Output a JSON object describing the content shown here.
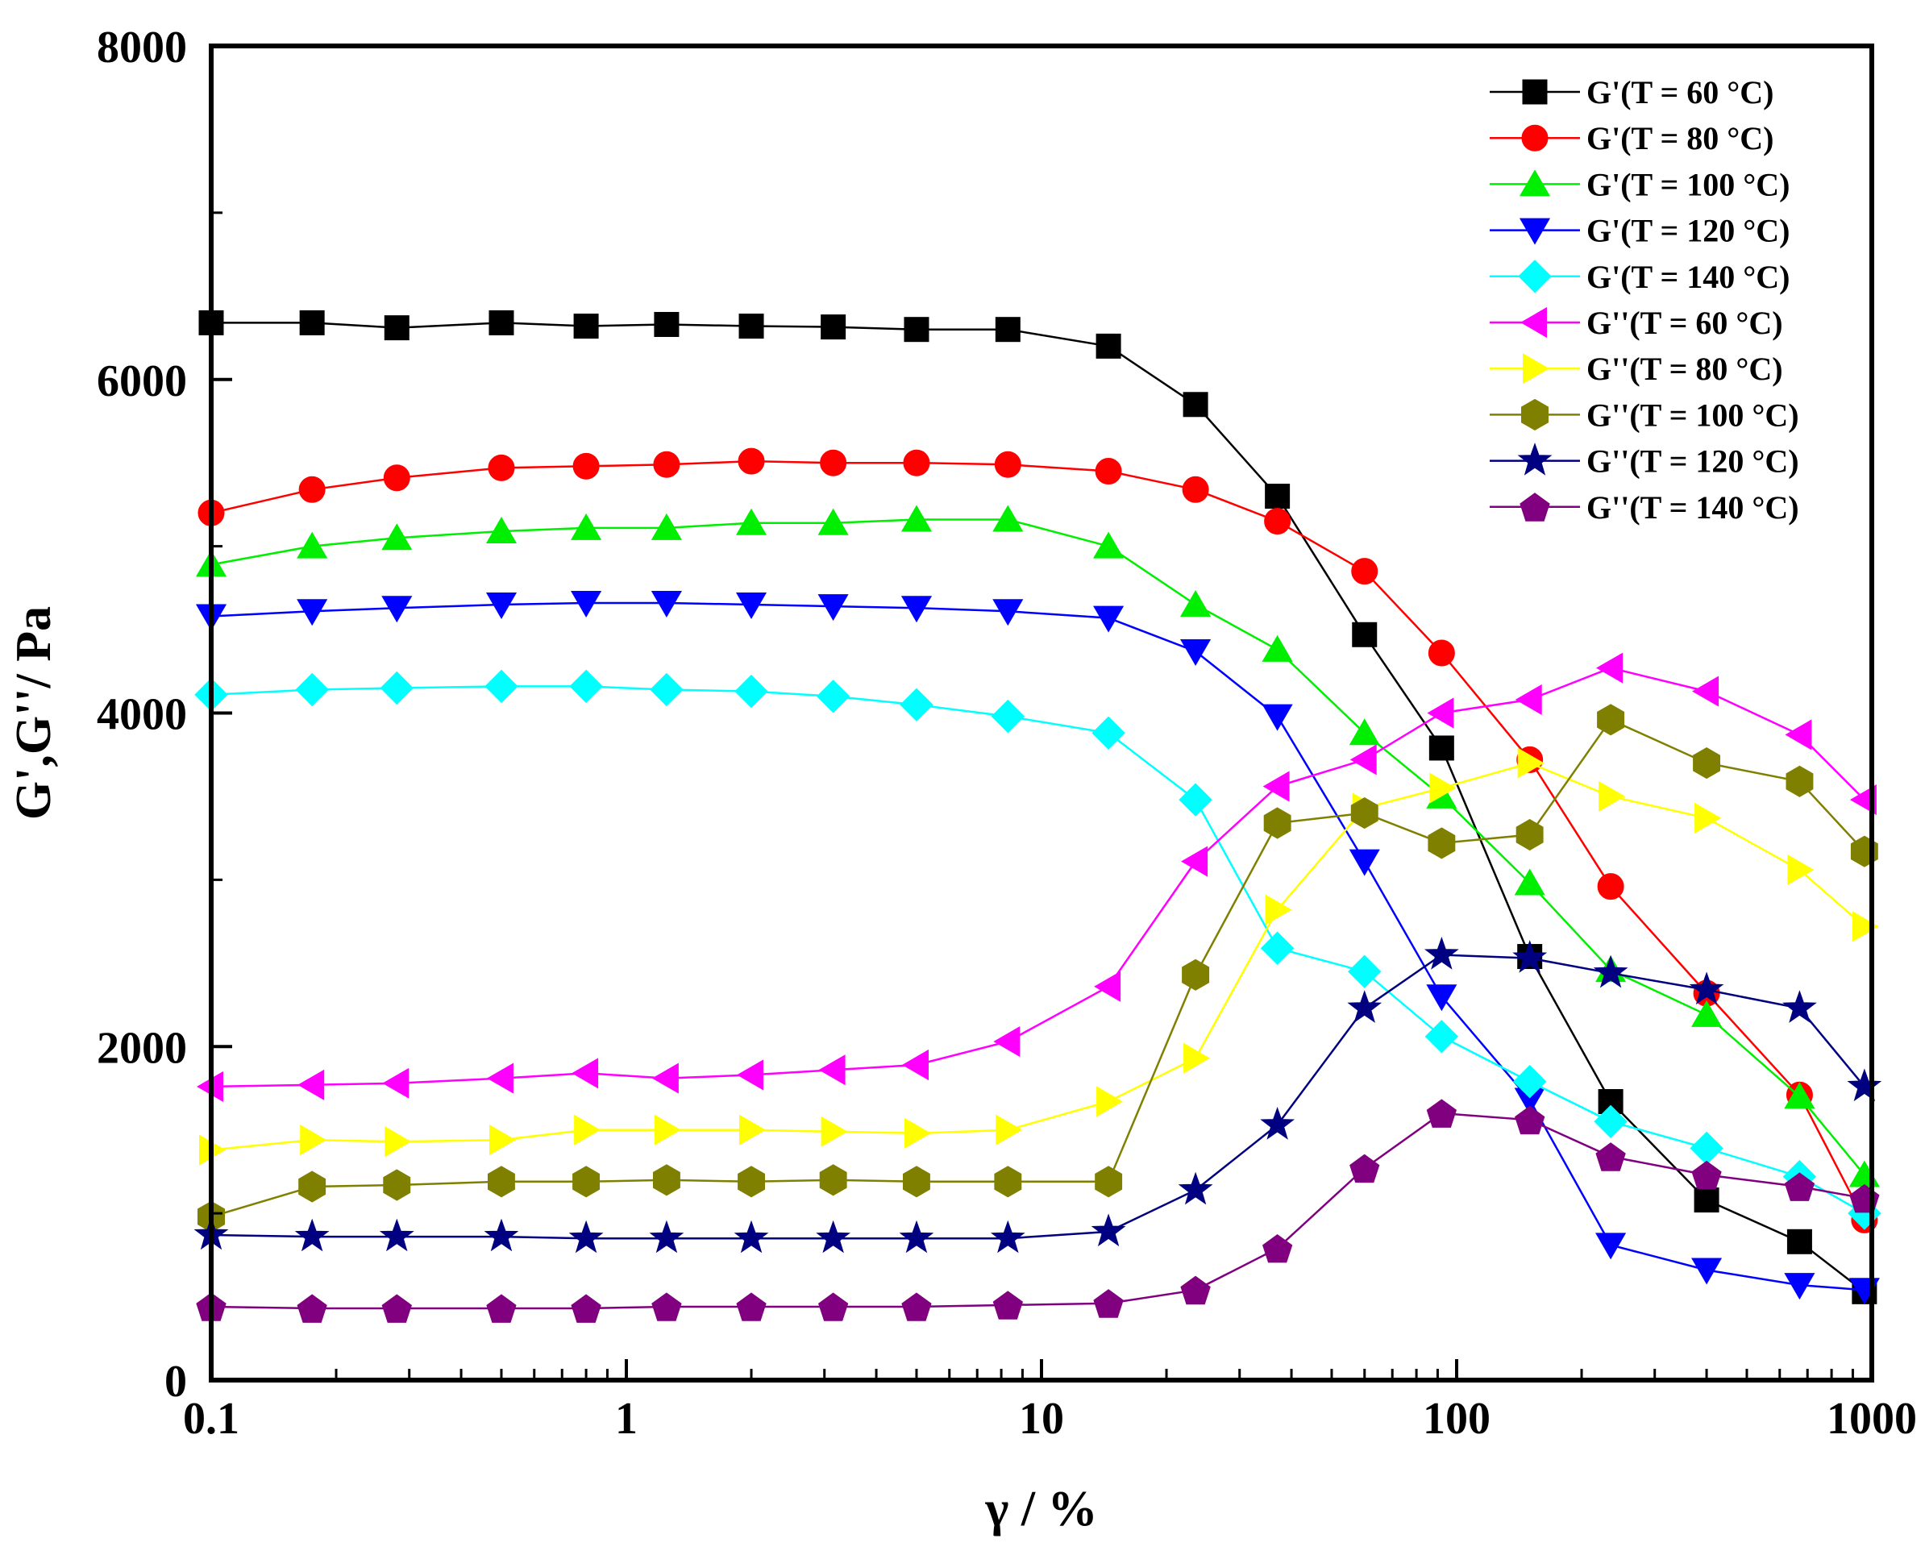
{
  "chart_data": {
    "type": "line",
    "title": "",
    "xlabel": "γ / %",
    "ylabel": "G',G''/ Pa",
    "xscale": "log",
    "xlim": [
      0.1,
      1000
    ],
    "ylim": [
      0,
      8000
    ],
    "x_ticks": [
      {
        "value": 0.1,
        "label": "0.1"
      },
      {
        "value": 1,
        "label": "1"
      },
      {
        "value": 10,
        "label": "10"
      },
      {
        "value": 100,
        "label": "100"
      },
      {
        "value": 1000,
        "label": "1000"
      }
    ],
    "y_ticks": [
      {
        "value": 0,
        "label": "0"
      },
      {
        "value": 2000,
        "label": "2000"
      },
      {
        "value": 4000,
        "label": "4000"
      },
      {
        "value": 6000,
        "label": "6000"
      },
      {
        "value": 8000,
        "label": "8000"
      }
    ],
    "legend_position": "top-right",
    "x": [
      0.1,
      0.175,
      0.28,
      0.5,
      0.8,
      1.25,
      2.0,
      3.15,
      5.0,
      8.3,
      14.5,
      23.5,
      37.0,
      60.0,
      92.0,
      150.0,
      235.0,
      400.0,
      670.0,
      960.0
    ],
    "series": [
      {
        "name": "G'(T = 60 °C)",
        "color": "#000000",
        "marker": "square",
        "values": [
          6340,
          6340,
          6310,
          6340,
          6320,
          6330,
          6320,
          6315,
          6300,
          6300,
          6200,
          5850,
          5300,
          4470,
          3790,
          2540,
          1670,
          1080,
          830,
          530
        ]
      },
      {
        "name": "G'(T = 80 °C)",
        "color": "#ff0000",
        "marker": "circle",
        "values": [
          5200,
          5340,
          5410,
          5470,
          5480,
          5490,
          5510,
          5500,
          5500,
          5490,
          5450,
          5340,
          5150,
          4850,
          4360,
          3720,
          2960,
          2320,
          1710,
          960
        ]
      },
      {
        "name": "G'(T = 100 °C)",
        "color": "#00ee00",
        "marker": "triangle-up",
        "values": [
          4890,
          5000,
          5050,
          5090,
          5110,
          5110,
          5140,
          5140,
          5160,
          5160,
          5000,
          4650,
          4380,
          3880,
          3500,
          2980,
          2460,
          2190,
          1700,
          1230
        ]
      },
      {
        "name": "G'(T = 120 °C)",
        "color": "#0000ff",
        "marker": "triangle-down",
        "values": [
          4580,
          4610,
          4630,
          4650,
          4660,
          4660,
          4650,
          4640,
          4630,
          4610,
          4570,
          4370,
          3980,
          3110,
          2300,
          1680,
          810,
          660,
          570,
          540
        ]
      },
      {
        "name": "G'(T = 140 °C)",
        "color": "#00ffff",
        "marker": "diamond",
        "values": [
          4110,
          4140,
          4150,
          4160,
          4160,
          4140,
          4130,
          4100,
          4050,
          3980,
          3880,
          3480,
          2590,
          2450,
          2060,
          1790,
          1550,
          1390,
          1220,
          1000
        ]
      },
      {
        "name": "G''(T = 60 °C)",
        "color": "#ff00ff",
        "marker": "triangle-left",
        "values": [
          1760,
          1770,
          1780,
          1810,
          1840,
          1810,
          1830,
          1860,
          1890,
          2030,
          2360,
          3110,
          3560,
          3720,
          4000,
          4080,
          4270,
          4130,
          3870,
          3480
        ]
      },
      {
        "name": "G''(T = 80 °C)",
        "color": "#ffff00",
        "marker": "triangle-right",
        "values": [
          1380,
          1440,
          1430,
          1440,
          1500,
          1500,
          1500,
          1490,
          1480,
          1500,
          1670,
          1930,
          2820,
          3430,
          3550,
          3700,
          3500,
          3370,
          3060,
          2720
        ]
      },
      {
        "name": "G''(T = 100 °C)",
        "color": "#808000",
        "marker": "hexagon",
        "values": [
          980,
          1160,
          1170,
          1190,
          1190,
          1200,
          1190,
          1200,
          1190,
          1190,
          1190,
          2430,
          3340,
          3400,
          3220,
          3270,
          3960,
          3700,
          3590,
          3170
        ]
      },
      {
        "name": "G''(T = 120 °C)",
        "color": "#000080",
        "marker": "star",
        "values": [
          870,
          860,
          860,
          860,
          850,
          850,
          850,
          850,
          850,
          850,
          890,
          1140,
          1530,
          2230,
          2550,
          2530,
          2440,
          2340,
          2230,
          1760
        ]
      },
      {
        "name": "G''(T = 140 °C)",
        "color": "#800080",
        "marker": "pentagon",
        "values": [
          440,
          430,
          430,
          430,
          430,
          440,
          440,
          440,
          440,
          450,
          460,
          540,
          790,
          1270,
          1600,
          1560,
          1340,
          1230,
          1160,
          1090
        ]
      }
    ]
  }
}
